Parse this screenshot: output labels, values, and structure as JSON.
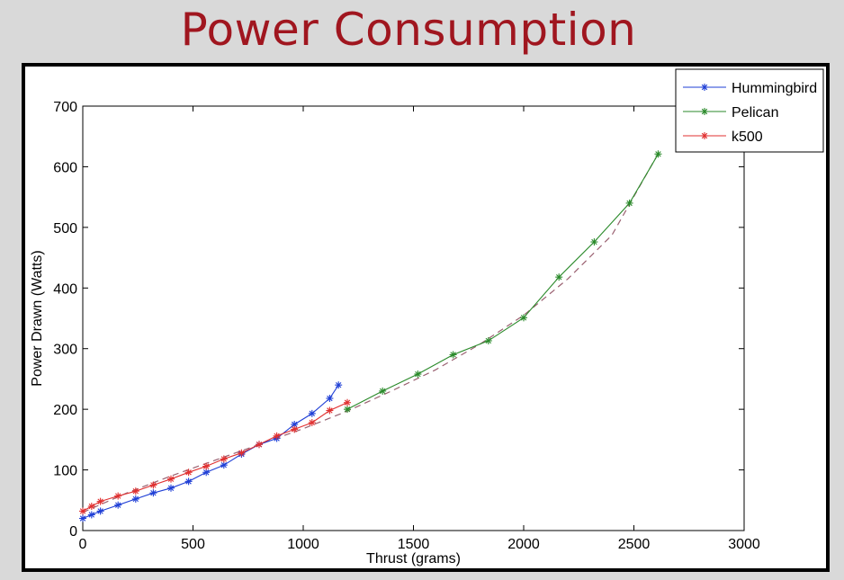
{
  "slide": {
    "title": "Power Consumption"
  },
  "chart_data": {
    "type": "line",
    "title": "",
    "xlabel": "Thrust (grams)",
    "ylabel": "Power Drawn (Watts)",
    "xlim": [
      0,
      3000
    ],
    "ylim": [
      0,
      700
    ],
    "xticks": [
      0,
      500,
      1000,
      1500,
      2000,
      2500,
      3000
    ],
    "yticks": [
      0,
      100,
      200,
      300,
      400,
      500,
      600,
      700
    ],
    "grid": false,
    "legend_position": "top-right",
    "series": [
      {
        "name": "Hummingbird",
        "color": "#1f3fd6",
        "marker": "asterisk",
        "x": [
          0,
          40,
          80,
          160,
          240,
          320,
          400,
          480,
          560,
          640,
          720,
          800,
          880,
          960,
          1040,
          1120,
          1160
        ],
        "y": [
          20,
          26,
          32,
          42,
          52,
          62,
          70,
          81,
          96,
          108,
          126,
          142,
          152,
          175,
          193,
          218,
          240
        ]
      },
      {
        "name": "Pelican",
        "color": "#2a8a2a",
        "marker": "asterisk",
        "x": [
          1200,
          1360,
          1520,
          1680,
          1840,
          2000,
          2160,
          2320,
          2480,
          2610
        ],
        "y": [
          200,
          230,
          258,
          290,
          313,
          351,
          418,
          476,
          540,
          621
        ]
      },
      {
        "name": "k500",
        "color": "#e03030",
        "marker": "asterisk",
        "x": [
          0,
          40,
          80,
          160,
          240,
          320,
          400,
          480,
          560,
          640,
          720,
          800,
          880,
          960,
          1040,
          1120,
          1200
        ],
        "y": [
          32,
          40,
          48,
          57,
          65,
          75,
          85,
          96,
          106,
          118,
          128,
          142,
          156,
          167,
          178,
          198,
          211
        ]
      }
    ],
    "fit_curve": {
      "color": "#9a6070",
      "style": "dashed",
      "x": [
        0,
        200,
        400,
        600,
        800,
        1000,
        1200,
        1400,
        1600,
        1800,
        2000,
        2200,
        2400,
        2600
      ],
      "y": [
        30,
        62,
        90,
        116,
        142,
        168,
        197,
        230,
        265,
        307,
        355,
        415,
        487,
        615
      ]
    }
  }
}
